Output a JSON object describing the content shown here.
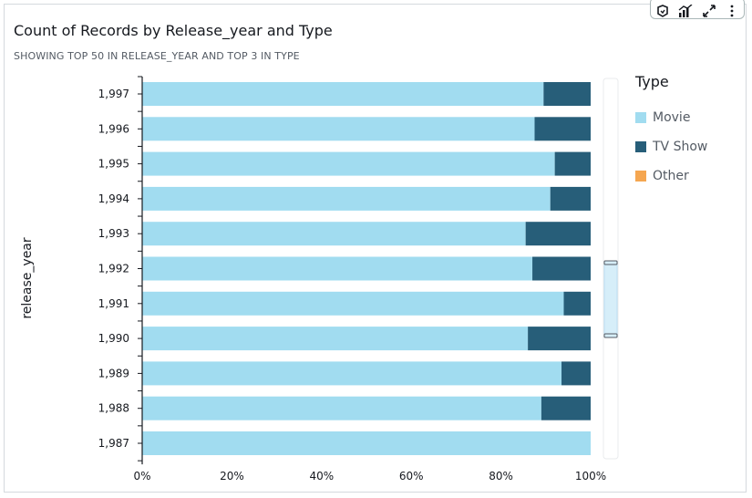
{
  "title": "Count of Records by Release_year and Type",
  "subtitle": "SHOWING TOP 50 IN RELEASE_YEAR AND TOP 3 IN TYPE",
  "legend": {
    "title": "Type",
    "items": [
      {
        "label": "Movie",
        "color": "#a1dcf0"
      },
      {
        "label": "TV Show",
        "color": "#275e79"
      },
      {
        "label": "Other",
        "color": "#f5a650"
      }
    ]
  },
  "toolbar": {
    "icons": [
      "filter-icon",
      "chart-type-icon",
      "expand-icon",
      "more-icon"
    ]
  },
  "chart_data": {
    "type": "bar",
    "orientation": "horizontal",
    "stacked": "percent",
    "ylabel": "release_year",
    "xlabel": "",
    "categories": [
      "1,997",
      "1,996",
      "1,995",
      "1,994",
      "1,993",
      "1,992",
      "1,991",
      "1,990",
      "1,989",
      "1,988",
      "1,987"
    ],
    "series": [
      {
        "name": "Movie",
        "color": "#a1dcf0",
        "values": [
          89.5,
          87.5,
          92,
          91,
          85.5,
          87,
          94,
          86,
          93.5,
          89,
          100
        ]
      },
      {
        "name": "TV Show",
        "color": "#275e79",
        "values": [
          10.5,
          12.5,
          8,
          9,
          14.5,
          13,
          6,
          14,
          6.5,
          11,
          0
        ]
      },
      {
        "name": "Other",
        "color": "#f5a650",
        "values": [
          0,
          0,
          0,
          0,
          0,
          0,
          0,
          0,
          0,
          0,
          0
        ]
      }
    ],
    "xticks": [
      "0%",
      "20%",
      "40%",
      "60%",
      "80%",
      "100%"
    ],
    "xlim": [
      0,
      100
    ],
    "grid": false,
    "legend_position": "right"
  }
}
